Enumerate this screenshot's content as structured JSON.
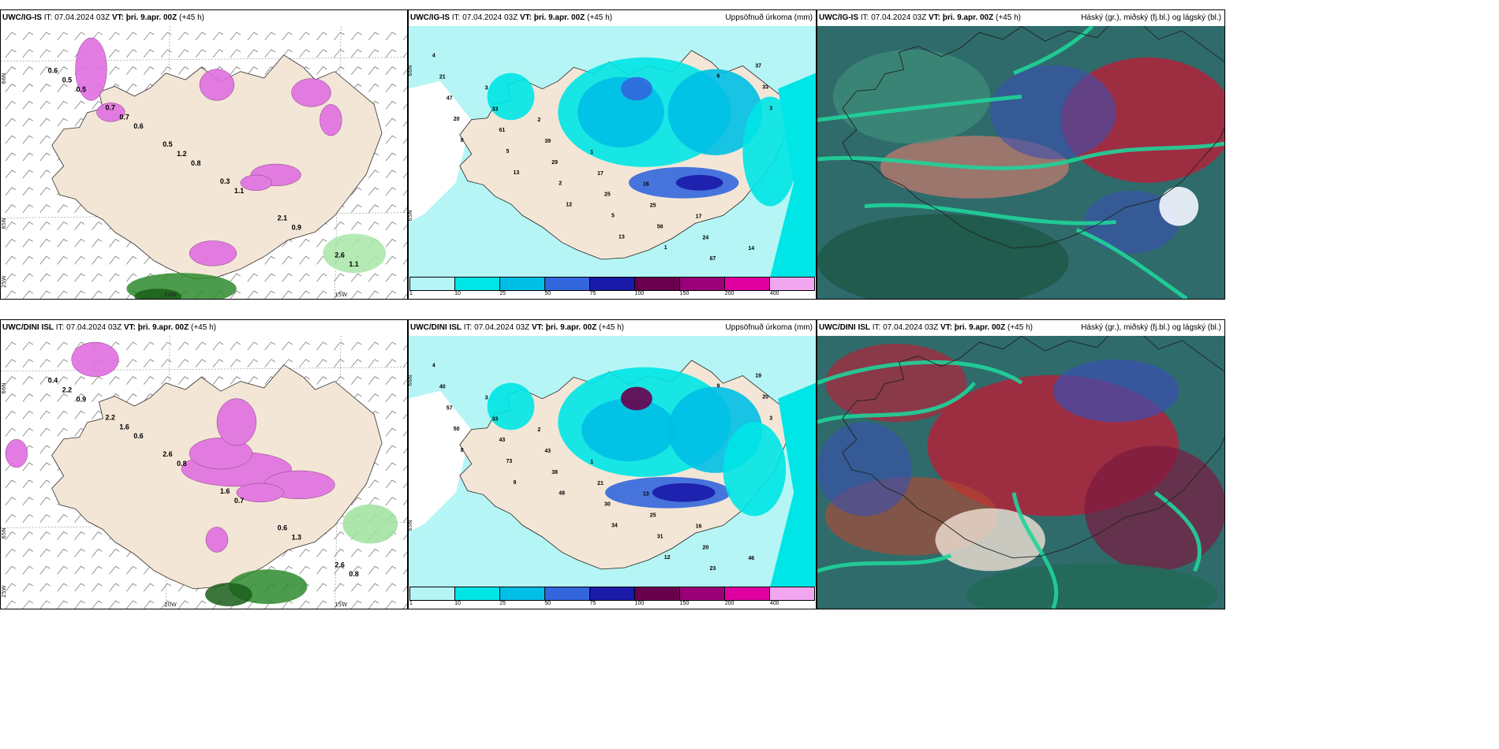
{
  "rows": [
    {
      "model": "UWC/IG-IS",
      "it": "IT: 07.04.2024 03Z",
      "vt_label": "VT:",
      "vt": "þri. 9.apr. 00Z",
      "lead": "(+45 h)",
      "panels": [
        {
          "kind": "snow",
          "title_right": "",
          "labels": [
            "0.6",
            "0.7",
            "0.5",
            "0.3",
            "2.1",
            "2.6",
            "0.5",
            "0.7",
            "1.2",
            "1.1",
            "0.9",
            "1.1",
            "0.5",
            "0.6",
            "0.8"
          ],
          "axis": [
            "66N",
            "65N",
            "25W",
            "20W",
            "15W"
          ]
        },
        {
          "kind": "precip",
          "title_right": "Uppsöfnuð úrkoma (mm)",
          "labels": [
            "4",
            "3",
            "2",
            "1",
            "16",
            "17",
            "14",
            "21",
            "33",
            "39",
            "17",
            "25",
            "24",
            "37",
            "47",
            "61",
            "29",
            "25",
            "56",
            "67",
            "33",
            "20",
            "5",
            "2",
            "5",
            "1",
            "6",
            "3",
            "8",
            "13",
            "12",
            "13"
          ],
          "axis": [
            "66N",
            "65N"
          ]
        },
        {
          "kind": "cloud",
          "title_right": "Háský (gr.), miðský (fj.bl.) og lágský (bl.)"
        }
      ]
    },
    {
      "model": "UWC/DINI ISL",
      "it": "IT: 07.04.2024 03Z",
      "vt_label": "VT:",
      "vt": "þri. 9.apr. 00Z",
      "lead": "(+45 h)",
      "panels": [
        {
          "kind": "snow",
          "title_right": "",
          "labels": [
            "0.4",
            "2.2",
            "2.6",
            "1.6",
            "0.6",
            "2.6",
            "2.2",
            "1.6",
            "0.8",
            "0.7",
            "1.3",
            "0.8",
            "0.9",
            "0.6"
          ],
          "axis": [
            "66N",
            "65N",
            "25W",
            "20W",
            "15W"
          ]
        },
        {
          "kind": "precip",
          "title_right": "Uppsöfnuð úrkoma (mm)",
          "labels": [
            "4",
            "3",
            "2",
            "1",
            "13",
            "16",
            "46",
            "40",
            "33",
            "43",
            "21",
            "25",
            "20",
            "19",
            "57",
            "43",
            "38",
            "30",
            "31",
            "23",
            "20",
            "50",
            "73",
            "48",
            "34",
            "12",
            "9",
            "3",
            "8",
            "9"
          ],
          "axis": [
            "66N",
            "65N"
          ]
        },
        {
          "kind": "cloud",
          "title_right": "Háský (gr.), miðský (fj.bl.) og lágský (bl.)"
        }
      ]
    }
  ],
  "colorbar": {
    "ticks": [
      "1",
      "10",
      "25",
      "50",
      "75",
      "100",
      "150",
      "200",
      "400"
    ],
    "colors": [
      "#b6f5f5",
      "#00e5e5",
      "#00bfe6",
      "#3366dd",
      "#1a1aa8",
      "#6a004d",
      "#9c0079",
      "#e000a0",
      "#f3a6f0"
    ]
  },
  "palette": {
    "land": "#f3e6d6",
    "sea": "#ffffff",
    "precip_sea": "#b6f5f5",
    "snow": "#e070e0",
    "rain_green": "#7dd27d",
    "cloud_high": "#b0233b",
    "cloud_mid": "#3a4fb0",
    "cloud_low": "#1fd49a"
  }
}
